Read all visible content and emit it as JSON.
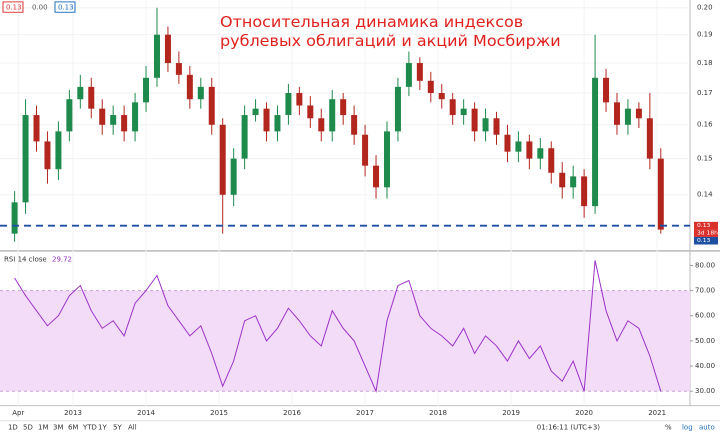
{
  "chart_data": [
    {
      "type": "candlestick",
      "title": [
        "Относительная динамика индексов",
        "рублевых облигаций и акций Мосбиржи"
      ],
      "header_values": [
        "0.13",
        "0.00",
        "0.13"
      ],
      "price_tags": [
        "0.13",
        "3d 18h",
        "0.13"
      ],
      "hline": 0.132,
      "hline_color": "#1e4fa0",
      "up_color": "#1e8a4c",
      "down_color": "#b3261e",
      "log": true,
      "ylim": [
        0.126,
        0.203
      ],
      "yticks": [
        0.14,
        0.15,
        0.16,
        0.17,
        0.18,
        0.19,
        {
          "value": 0.2,
          "label": "0.20"
        }
      ],
      "xlim": [
        2012.0,
        2021.45
      ],
      "xticks": [
        {
          "value": 2012.25,
          "label": "Apr"
        },
        2013,
        2014,
        2015,
        2016,
        2017,
        2018,
        2019,
        2020,
        2021
      ],
      "x": [
        2012.2,
        2012.35,
        2012.5,
        2012.65,
        2012.8,
        2012.95,
        2013.1,
        2013.25,
        2013.4,
        2013.55,
        2013.7,
        2013.85,
        2014.0,
        2014.15,
        2014.3,
        2014.45,
        2014.6,
        2014.75,
        2014.9,
        2015.05,
        2015.2,
        2015.35,
        2015.5,
        2015.65,
        2015.8,
        2015.95,
        2016.1,
        2016.25,
        2016.4,
        2016.55,
        2016.7,
        2016.85,
        2017.0,
        2017.15,
        2017.3,
        2017.45,
        2017.6,
        2017.75,
        2017.9,
        2018.05,
        2018.2,
        2018.35,
        2018.5,
        2018.65,
        2018.8,
        2018.95,
        2019.1,
        2019.25,
        2019.4,
        2019.55,
        2019.7,
        2019.85,
        2020.0,
        2020.15,
        2020.3,
        2020.45,
        2020.6,
        2020.75,
        2020.9,
        2021.05
      ],
      "open": [
        0.13,
        0.138,
        0.163,
        0.155,
        0.147,
        0.158,
        0.168,
        0.172,
        0.165,
        0.16,
        0.163,
        0.158,
        0.167,
        0.175,
        0.19,
        0.18,
        0.176,
        0.168,
        0.172,
        0.16,
        0.14,
        0.15,
        0.163,
        0.165,
        0.158,
        0.163,
        0.17,
        0.166,
        0.162,
        0.158,
        0.168,
        0.163,
        0.157,
        0.148,
        0.142,
        0.158,
        0.172,
        0.18,
        0.174,
        0.17,
        0.168,
        0.163,
        0.165,
        0.158,
        0.162,
        0.157,
        0.152,
        0.155,
        0.15,
        0.153,
        0.146,
        0.142,
        0.145,
        0.137,
        0.175,
        0.167,
        0.16,
        0.165,
        0.162,
        0.15
      ],
      "high": [
        0.141,
        0.168,
        0.166,
        0.158,
        0.161,
        0.171,
        0.176,
        0.175,
        0.168,
        0.166,
        0.166,
        0.17,
        0.179,
        0.2,
        0.193,
        0.184,
        0.179,
        0.175,
        0.175,
        0.162,
        0.153,
        0.166,
        0.168,
        0.167,
        0.166,
        0.173,
        0.172,
        0.169,
        0.165,
        0.171,
        0.17,
        0.166,
        0.16,
        0.151,
        0.161,
        0.175,
        0.184,
        0.182,
        0.177,
        0.173,
        0.17,
        0.168,
        0.167,
        0.165,
        0.164,
        0.16,
        0.158,
        0.157,
        0.156,
        0.155,
        0.149,
        0.148,
        0.147,
        0.19,
        0.178,
        0.17,
        0.168,
        0.167,
        0.17,
        0.153
      ],
      "low": [
        0.128,
        0.135,
        0.152,
        0.143,
        0.144,
        0.155,
        0.165,
        0.162,
        0.157,
        0.157,
        0.155,
        0.155,
        0.164,
        0.172,
        0.177,
        0.173,
        0.165,
        0.165,
        0.157,
        0.13,
        0.137,
        0.147,
        0.161,
        0.155,
        0.155,
        0.16,
        0.163,
        0.159,
        0.155,
        0.155,
        0.16,
        0.154,
        0.145,
        0.139,
        0.139,
        0.155,
        0.169,
        0.171,
        0.167,
        0.165,
        0.16,
        0.16,
        0.155,
        0.155,
        0.154,
        0.149,
        0.149,
        0.147,
        0.147,
        0.143,
        0.139,
        0.139,
        0.134,
        0.135,
        0.164,
        0.157,
        0.157,
        0.159,
        0.147,
        0.13
      ],
      "close": [
        0.138,
        0.163,
        0.155,
        0.147,
        0.158,
        0.168,
        0.172,
        0.165,
        0.16,
        0.163,
        0.158,
        0.167,
        0.175,
        0.19,
        0.18,
        0.176,
        0.168,
        0.172,
        0.16,
        0.14,
        0.15,
        0.163,
        0.165,
        0.158,
        0.163,
        0.17,
        0.166,
        0.162,
        0.158,
        0.168,
        0.163,
        0.157,
        0.148,
        0.142,
        0.158,
        0.172,
        0.18,
        0.174,
        0.17,
        0.168,
        0.163,
        0.165,
        0.158,
        0.162,
        0.157,
        0.152,
        0.155,
        0.15,
        0.153,
        0.146,
        0.142,
        0.145,
        0.137,
        0.175,
        0.167,
        0.16,
        0.165,
        0.162,
        0.15,
        0.131
      ]
    },
    {
      "type": "line",
      "legend": "RSI 14 close",
      "last_value": "29.72",
      "color": "#9b30c8",
      "band": [
        30,
        70
      ],
      "band_color": "#f3dcf7",
      "ylim": [
        25,
        85
      ],
      "yticks": [
        {
          "value": 30,
          "label": "30.00"
        },
        {
          "value": 40,
          "label": "40.00"
        },
        {
          "value": 50,
          "label": "50.00"
        },
        {
          "value": 60,
          "label": "60.00"
        },
        {
          "value": 70,
          "label": "70.00"
        },
        {
          "value": 80,
          "label": "80.00"
        }
      ],
      "x": [
        2012.2,
        2012.35,
        2012.5,
        2012.65,
        2012.8,
        2012.95,
        2013.1,
        2013.25,
        2013.4,
        2013.55,
        2013.7,
        2013.85,
        2014.0,
        2014.15,
        2014.3,
        2014.45,
        2014.6,
        2014.75,
        2014.9,
        2015.05,
        2015.2,
        2015.35,
        2015.5,
        2015.65,
        2015.8,
        2015.95,
        2016.1,
        2016.25,
        2016.4,
        2016.55,
        2016.7,
        2016.85,
        2017.0,
        2017.15,
        2017.3,
        2017.45,
        2017.6,
        2017.75,
        2017.9,
        2018.05,
        2018.2,
        2018.35,
        2018.5,
        2018.65,
        2018.8,
        2018.95,
        2019.1,
        2019.25,
        2019.4,
        2019.55,
        2019.7,
        2019.85,
        2020.0,
        2020.15,
        2020.3,
        2020.45,
        2020.6,
        2020.75,
        2020.9,
        2021.05
      ],
      "values": [
        75,
        68,
        62,
        56,
        60,
        68,
        72,
        62,
        55,
        58,
        52,
        65,
        70,
        76,
        64,
        58,
        52,
        56,
        45,
        32,
        42,
        58,
        60,
        50,
        55,
        63,
        58,
        52,
        48,
        62,
        55,
        50,
        40,
        30,
        58,
        72,
        74,
        60,
        55,
        52,
        48,
        55,
        45,
        52,
        48,
        42,
        50,
        43,
        48,
        38,
        34,
        42,
        30,
        82,
        62,
        50,
        58,
        55,
        44,
        30
      ]
    }
  ],
  "toolbar": {
    "ranges": [
      "1D",
      "5D",
      "1M",
      "3M",
      "6M",
      "YTD",
      "1Y",
      "5Y",
      "All"
    ],
    "clock": "01:16:11 (UTC+3)",
    "options": [
      "%",
      "log",
      "auto"
    ]
  }
}
